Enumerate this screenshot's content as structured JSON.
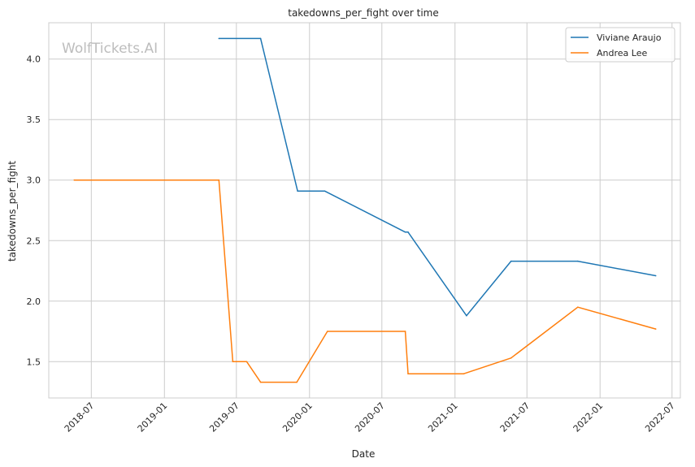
{
  "chart_data": {
    "type": "line",
    "title": "takedowns_per_fight over time",
    "xlabel": "Date",
    "ylabel": "takedowns_per_fight",
    "watermark": "WolfTickets.AI",
    "x_ticks": [
      "2018-07",
      "2019-01",
      "2019-07",
      "2020-01",
      "2020-07",
      "2021-01",
      "2021-07",
      "2022-01",
      "2022-07"
    ],
    "y_ticks": [
      1.5,
      2.0,
      2.5,
      3.0,
      3.5,
      4.0
    ],
    "xlim": [
      "2018-03-16",
      "2022-07-22"
    ],
    "ylim": [
      1.2,
      4.3
    ],
    "grid": true,
    "legend_position": "top-right",
    "series": [
      {
        "name": "Viviane Araujo",
        "color": "#1f77b4",
        "points": [
          [
            "2019-05-18",
            4.17
          ],
          [
            "2019-08-31",
            4.17
          ],
          [
            "2019-12-02",
            2.91
          ],
          [
            "2020-02-08",
            2.91
          ],
          [
            "2020-08-29",
            2.57
          ],
          [
            "2020-09-05",
            2.57
          ],
          [
            "2021-01-30",
            1.88
          ],
          [
            "2021-05-22",
            2.33
          ],
          [
            "2021-11-06",
            2.33
          ],
          [
            "2022-05-21",
            2.21
          ]
        ]
      },
      {
        "name": "Andrea Lee",
        "color": "#ff7f0e",
        "points": [
          [
            "2018-05-19",
            3.0
          ],
          [
            "2019-05-18",
            3.0
          ],
          [
            "2019-06-22",
            1.5
          ],
          [
            "2019-07-27",
            1.5
          ],
          [
            "2019-08-31",
            1.33
          ],
          [
            "2019-11-30",
            1.33
          ],
          [
            "2020-02-15",
            1.75
          ],
          [
            "2020-08-29",
            1.75
          ],
          [
            "2020-09-05",
            1.4
          ],
          [
            "2021-01-23",
            1.4
          ],
          [
            "2021-05-22",
            1.53
          ],
          [
            "2021-11-06",
            1.95
          ],
          [
            "2022-05-21",
            1.77
          ]
        ]
      }
    ]
  }
}
